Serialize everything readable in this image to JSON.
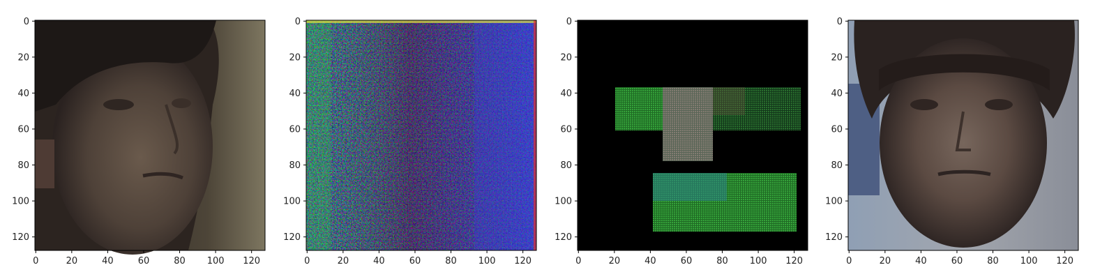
{
  "figure": {
    "panels": [
      {
        "name": "face-photo-profile",
        "kind": "photo",
        "content": "grayscale face, three-quarter view"
      },
      {
        "name": "noise-heatmap",
        "kind": "noise-rgb",
        "content": "colorful pixel noise with faint face"
      },
      {
        "name": "segmented-blocks",
        "kind": "blocks",
        "content": "green rectangular blocks on black"
      },
      {
        "name": "face-photo-frontal",
        "kind": "photo",
        "content": "face, frontal view"
      }
    ]
  },
  "chart_data": [
    {
      "type": "heatmap",
      "title": "",
      "xlabel": "",
      "ylabel": "",
      "xlim": [
        0,
        127
      ],
      "ylim": [
        127,
        0
      ],
      "x_ticks": [
        "0",
        "20",
        "40",
        "60",
        "80",
        "100",
        "120"
      ],
      "y_ticks": [
        "0",
        "20",
        "40",
        "60",
        "80",
        "100",
        "120"
      ],
      "image": "face photo, three-quarter view, muted olive background",
      "dominant_colors": [
        "#3d3530",
        "#6a5a4c",
        "#7d7660"
      ]
    },
    {
      "type": "heatmap",
      "title": "",
      "xlabel": "",
      "ylabel": "",
      "xlim": [
        0,
        127
      ],
      "ylim": [
        127,
        0
      ],
      "x_ticks": [
        "0",
        "20",
        "40",
        "60",
        "80",
        "100",
        "120"
      ],
      "y_ticks": [
        "0",
        "20",
        "40",
        "60",
        "80",
        "100",
        "120"
      ],
      "image": "high-frequency RGB noise with faint face structure, blue on right",
      "dominant_colors": [
        "#3a2a3a",
        "#22dd33",
        "#3344dd",
        "#cc2222"
      ]
    },
    {
      "type": "heatmap",
      "title": "",
      "xlabel": "",
      "ylabel": "",
      "xlim": [
        0,
        127
      ],
      "ylim": [
        127,
        0
      ],
      "x_ticks": [
        "0",
        "20",
        "40",
        "60",
        "80",
        "100",
        "120"
      ],
      "y_ticks": [
        "0",
        "20",
        "40",
        "60",
        "80",
        "100",
        "120"
      ],
      "image": "black background with green rectangular patches",
      "regions": [
        {
          "x": [
            21,
            47
          ],
          "y": [
            37,
            61
          ]
        },
        {
          "x": [
            47,
            75
          ],
          "y": [
            37,
            78
          ]
        },
        {
          "x": [
            75,
            93
          ],
          "y": [
            37,
            52
          ]
        },
        {
          "x": [
            93,
            123
          ],
          "y": [
            37,
            61
          ]
        },
        {
          "x": [
            42,
            121
          ],
          "y": [
            85,
            117
          ]
        }
      ],
      "dominant_colors": [
        "#000000",
        "#2a8a2a",
        "#2a5a2a",
        "#7a6a60"
      ]
    },
    {
      "type": "heatmap",
      "title": "",
      "xlabel": "",
      "ylabel": "",
      "xlim": [
        0,
        127
      ],
      "ylim": [
        127,
        0
      ],
      "x_ticks": [
        "0",
        "20",
        "40",
        "60",
        "80",
        "100",
        "120"
      ],
      "y_ticks": [
        "0",
        "20",
        "40",
        "60",
        "80",
        "100",
        "120"
      ],
      "image": "face photo, frontal view, light background",
      "dominant_colors": [
        "#3b3130",
        "#6b5a52",
        "#8c8c96"
      ]
    }
  ]
}
